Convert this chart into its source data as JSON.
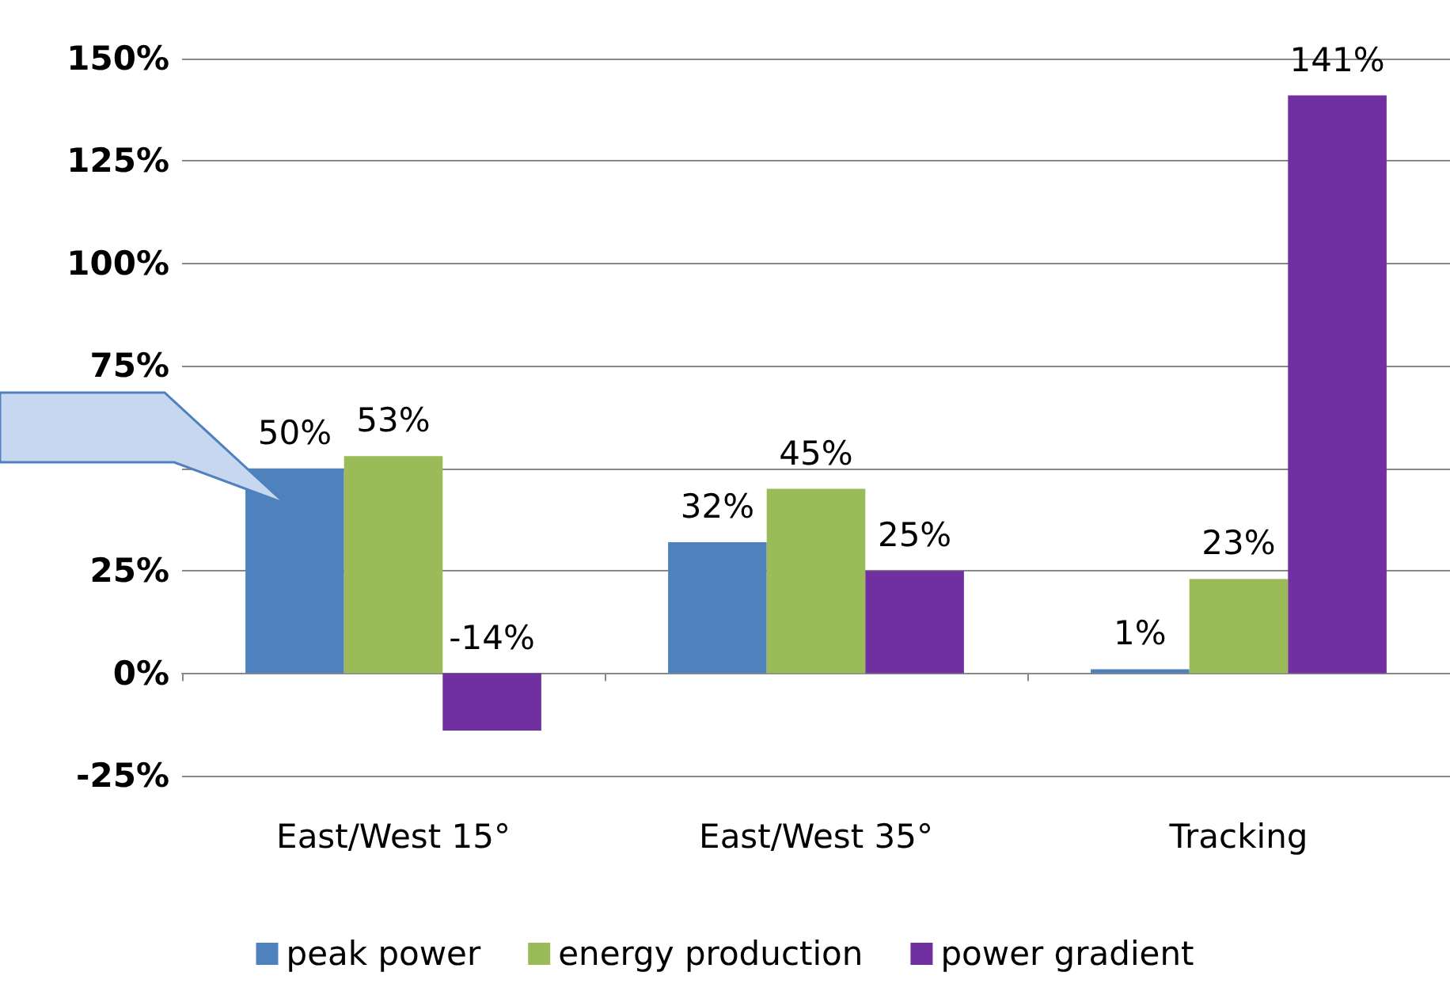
{
  "chart_data": {
    "type": "bar",
    "categories": [
      "East/West 15°",
      "East/West 35°",
      "Tracking"
    ],
    "series": [
      {
        "name": "peak power",
        "color": "#4f81bd",
        "values": [
          50,
          32,
          1
        ],
        "value_labels": [
          "50%",
          "32%",
          "1%"
        ]
      },
      {
        "name": "energy production",
        "color": "#9bbb59",
        "values": [
          53,
          45,
          23
        ],
        "value_labels": [
          "53%",
          "45%",
          "23%"
        ]
      },
      {
        "name": "power gradient",
        "color": "#7030a0",
        "values": [
          -14,
          25,
          141
        ],
        "value_labels": [
          "-14%",
          "25%",
          "141%"
        ]
      }
    ],
    "ylim": [
      -25,
      150
    ],
    "yticks": [
      {
        "value": -25,
        "label": "-25%"
      },
      {
        "value": 0,
        "label": "0%"
      },
      {
        "value": 25,
        "label": "25%"
      },
      {
        "value": 50,
        "label": null
      },
      {
        "value": 75,
        "label": "75%"
      },
      {
        "value": 100,
        "label": "100%"
      },
      {
        "value": 125,
        "label": "125%"
      },
      {
        "value": 150,
        "label": "150%"
      }
    ],
    "grid": true,
    "legend": "bottom"
  }
}
